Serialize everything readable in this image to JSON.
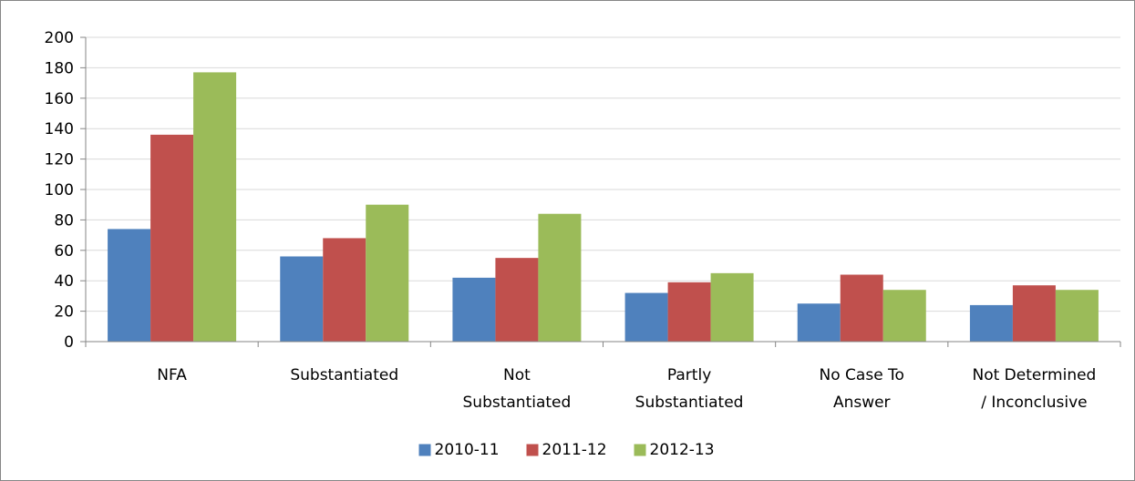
{
  "chart_data": {
    "type": "bar",
    "title": "",
    "xlabel": "",
    "ylabel": "",
    "categories": [
      [
        "NFA"
      ],
      [
        "Substantiated"
      ],
      [
        "Not",
        "Substantiated"
      ],
      [
        "Partly",
        "Substantiated"
      ],
      [
        "No Case To",
        "Answer"
      ],
      [
        "Not Determined",
        "/ Inconclusive"
      ]
    ],
    "series": [
      {
        "name": "2010-11",
        "color": "#4F81BD",
        "values": [
          74,
          56,
          42,
          32,
          25,
          24
        ]
      },
      {
        "name": "2011-12",
        "color": "#C0504D",
        "values": [
          136,
          68,
          55,
          39,
          44,
          37
        ]
      },
      {
        "name": "2012-13",
        "color": "#9BBB59",
        "values": [
          177,
          90,
          84,
          45,
          34,
          34
        ]
      }
    ],
    "ylim": [
      0,
      200
    ],
    "yticks": [
      "0",
      "20",
      "40",
      "60",
      "80",
      "100",
      "120",
      "140",
      "160",
      "180",
      "200"
    ],
    "grid": true,
    "gridline_color": "#D9D9D9",
    "axis_color": "#868686",
    "legend_position": "bottom"
  }
}
